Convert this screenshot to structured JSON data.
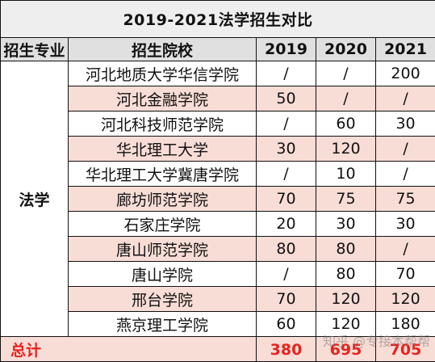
{
  "title": "2019-2021法学招生对比",
  "headers": {
    "major": "招生专业",
    "school": "招生院校",
    "y2019": "2019",
    "y2020": "2020",
    "y2021": "2021"
  },
  "major": "法学",
  "rows": [
    {
      "school": "河北地质大学华信学院",
      "y2019": "/",
      "y2020": "/",
      "y2021": "200"
    },
    {
      "school": "河北金融学院",
      "y2019": "50",
      "y2020": "/",
      "y2021": "/"
    },
    {
      "school": "河北科技师范学院",
      "y2019": "/",
      "y2020": "60",
      "y2021": "30"
    },
    {
      "school": "华北理工大学",
      "y2019": "30",
      "y2020": "120",
      "y2021": "/"
    },
    {
      "school": "华北理工大学冀唐学院",
      "y2019": "/",
      "y2020": "10",
      "y2021": "/"
    },
    {
      "school": "廊坊师范学院",
      "y2019": "70",
      "y2020": "75",
      "y2021": "75"
    },
    {
      "school": "石家庄学院",
      "y2019": "20",
      "y2020": "30",
      "y2021": "30"
    },
    {
      "school": "唐山师范学院",
      "y2019": "80",
      "y2020": "80",
      "y2021": "/"
    },
    {
      "school": "唐山学院",
      "y2019": "/",
      "y2020": "80",
      "y2021": "70"
    },
    {
      "school": "邢台学院",
      "y2019": "70",
      "y2020": "120",
      "y2021": "120"
    },
    {
      "school": "燕京理工学院",
      "y2019": "60",
      "y2020": "120",
      "y2021": "180"
    }
  ],
  "total": {
    "label": "总计",
    "y2019": "380",
    "y2020": "695",
    "y2021": "705"
  },
  "watermark": "知乎 @专接本帮帮",
  "colors": {
    "shade": "#f8dcd6",
    "header": "#e0e0e0",
    "title_bg": "#eeeeee",
    "total_text": "#e8231f"
  }
}
